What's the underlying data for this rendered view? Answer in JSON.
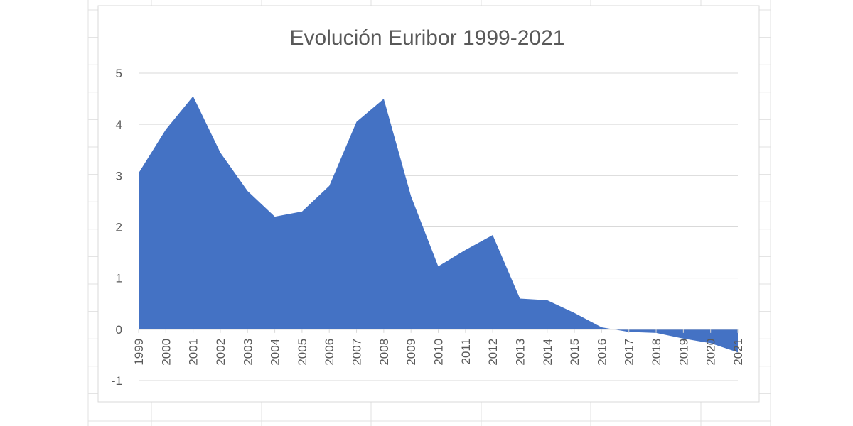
{
  "colors": {
    "area_fill": "#4472C4",
    "gridline": "#D9D9D9",
    "text": "#595959",
    "sheet_grid": "#E1E1E1",
    "chart_border": "#D9D9D9"
  },
  "chart_data": {
    "type": "area",
    "title": "Evolución Euribor 1999-2021",
    "xlabel": "",
    "ylabel": "",
    "categories": [
      "1999",
      "2000",
      "2001",
      "2002",
      "2003",
      "2004",
      "2005",
      "2006",
      "2007",
      "2008",
      "2009",
      "2010",
      "2011",
      "2012",
      "2013",
      "2014",
      "2015",
      "2016",
      "2017",
      "2018",
      "2019",
      "2020",
      "2021"
    ],
    "series": [
      {
        "values": [
          3.05,
          3.9,
          4.55,
          3.45,
          2.7,
          2.2,
          2.3,
          2.8,
          4.05,
          4.5,
          2.6,
          1.23,
          1.55,
          1.84,
          0.6,
          0.57,
          0.32,
          0.04,
          -0.05,
          -0.07,
          -0.18,
          -0.27,
          -0.45
        ]
      }
    ],
    "ylim": [
      -1,
      5
    ],
    "yticks": [
      "-1",
      "0",
      "1",
      "2",
      "3",
      "4",
      "5"
    ],
    "grid": true,
    "legend": "none"
  }
}
